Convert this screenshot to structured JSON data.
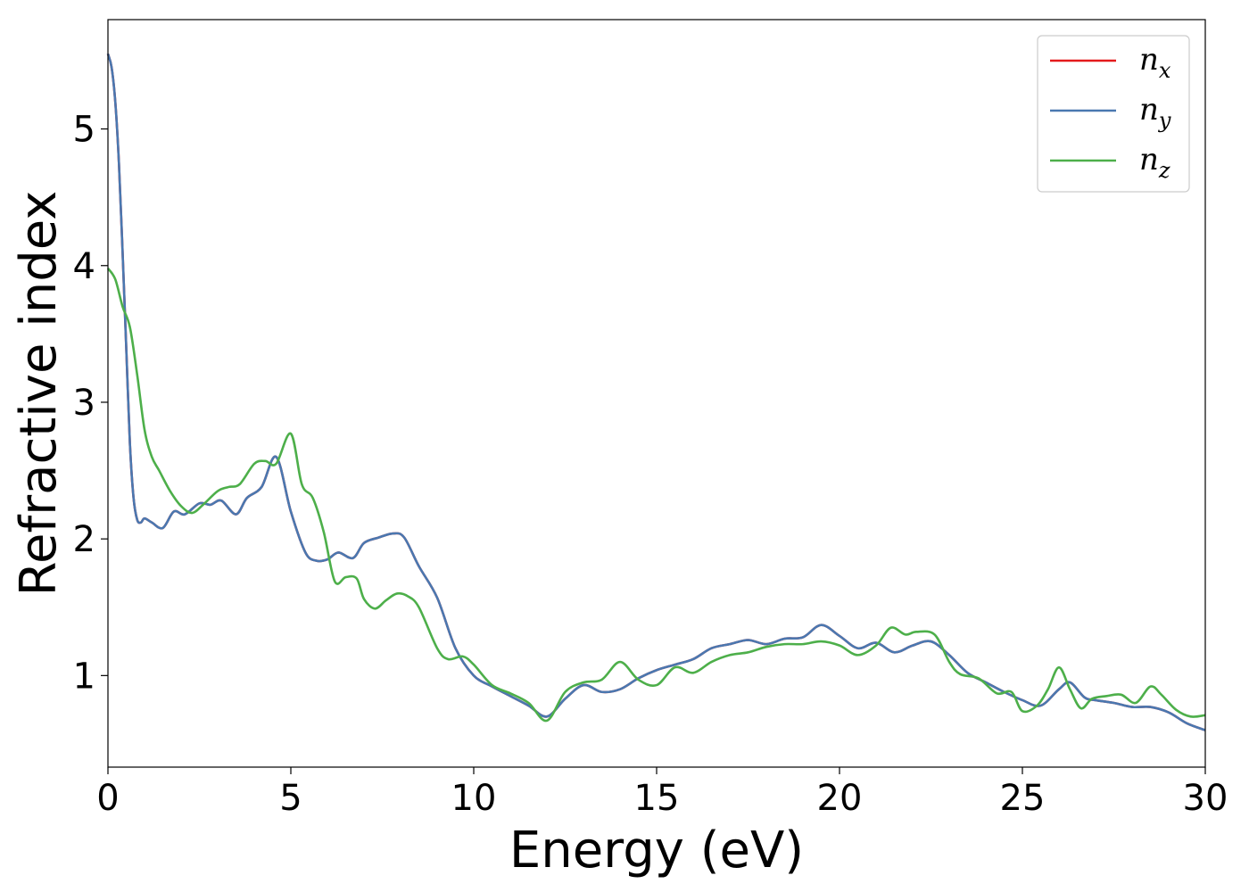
{
  "chart_data": {
    "type": "line",
    "title": "",
    "xlabel": "Energy (eV)",
    "ylabel": "Refractive index",
    "xlim": [
      0,
      30
    ],
    "ylim": [
      0.33,
      5.8
    ],
    "xticks": [
      0,
      5,
      10,
      15,
      20,
      25,
      30
    ],
    "yticks": [
      1,
      2,
      3,
      4,
      5
    ],
    "grid": false,
    "legend_position": "top-right",
    "series": [
      {
        "name": "n",
        "subscript": "x",
        "color": "#e41a1c",
        "x": [
          0,
          0.1,
          0.2,
          0.3,
          0.4,
          0.5,
          0.6,
          0.7,
          0.8,
          0.9,
          1.0,
          1.2,
          1.5,
          1.8,
          2.1,
          2.5,
          2.8,
          3.1,
          3.5,
          3.8,
          4.2,
          4.6,
          5.0,
          5.4,
          5.7,
          6.0,
          6.3,
          6.7,
          7.0,
          7.4,
          7.8,
          8.1,
          8.5,
          9.0,
          9.5,
          10.0,
          10.5,
          11.0,
          11.5,
          12.0,
          12.5,
          13.0,
          13.5,
          14.0,
          14.5,
          15.0,
          15.5,
          16.0,
          16.5,
          17.0,
          17.5,
          18.0,
          18.5,
          19.0,
          19.5,
          20.0,
          20.5,
          21.0,
          21.5,
          22.0,
          22.5,
          23.0,
          23.5,
          24.0,
          24.5,
          25.0,
          25.5,
          26.0,
          26.3,
          26.7,
          27.0,
          27.5,
          28.0,
          28.5,
          29.0,
          29.5,
          30.0
        ],
        "y": [
          5.55,
          5.45,
          5.2,
          4.75,
          4.1,
          3.4,
          2.7,
          2.3,
          2.14,
          2.12,
          2.15,
          2.12,
          2.08,
          2.2,
          2.18,
          2.26,
          2.25,
          2.28,
          2.18,
          2.3,
          2.38,
          2.6,
          2.2,
          1.9,
          1.84,
          1.85,
          1.9,
          1.86,
          1.97,
          2.01,
          2.04,
          2.01,
          1.8,
          1.57,
          1.2,
          1.0,
          0.92,
          0.85,
          0.78,
          0.7,
          0.83,
          0.93,
          0.88,
          0.9,
          0.98,
          1.04,
          1.08,
          1.12,
          1.2,
          1.23,
          1.26,
          1.23,
          1.27,
          1.28,
          1.37,
          1.29,
          1.2,
          1.24,
          1.17,
          1.22,
          1.25,
          1.15,
          1.02,
          0.95,
          0.88,
          0.82,
          0.78,
          0.9,
          0.95,
          0.84,
          0.82,
          0.8,
          0.77,
          0.77,
          0.73,
          0.65,
          0.6
        ]
      },
      {
        "name": "n",
        "subscript": "y",
        "color": "#4a78b0",
        "x": [
          0,
          0.1,
          0.2,
          0.3,
          0.4,
          0.5,
          0.6,
          0.7,
          0.8,
          0.9,
          1.0,
          1.2,
          1.5,
          1.8,
          2.1,
          2.5,
          2.8,
          3.1,
          3.5,
          3.8,
          4.2,
          4.6,
          5.0,
          5.4,
          5.7,
          6.0,
          6.3,
          6.7,
          7.0,
          7.4,
          7.8,
          8.1,
          8.5,
          9.0,
          9.5,
          10.0,
          10.5,
          11.0,
          11.5,
          12.0,
          12.5,
          13.0,
          13.5,
          14.0,
          14.5,
          15.0,
          15.5,
          16.0,
          16.5,
          17.0,
          17.5,
          18.0,
          18.5,
          19.0,
          19.5,
          20.0,
          20.5,
          21.0,
          21.5,
          22.0,
          22.5,
          23.0,
          23.5,
          24.0,
          24.5,
          25.0,
          25.5,
          26.0,
          26.3,
          26.7,
          27.0,
          27.5,
          28.0,
          28.5,
          29.0,
          29.5,
          30.0
        ],
        "y": [
          5.55,
          5.45,
          5.2,
          4.75,
          4.1,
          3.4,
          2.7,
          2.3,
          2.14,
          2.12,
          2.15,
          2.12,
          2.08,
          2.2,
          2.18,
          2.26,
          2.25,
          2.28,
          2.18,
          2.3,
          2.38,
          2.6,
          2.2,
          1.9,
          1.84,
          1.85,
          1.9,
          1.86,
          1.97,
          2.01,
          2.04,
          2.01,
          1.8,
          1.57,
          1.2,
          1.0,
          0.92,
          0.85,
          0.78,
          0.7,
          0.83,
          0.93,
          0.88,
          0.9,
          0.98,
          1.04,
          1.08,
          1.12,
          1.2,
          1.23,
          1.26,
          1.23,
          1.27,
          1.28,
          1.37,
          1.29,
          1.2,
          1.24,
          1.17,
          1.22,
          1.25,
          1.15,
          1.02,
          0.95,
          0.88,
          0.82,
          0.78,
          0.9,
          0.95,
          0.84,
          0.82,
          0.8,
          0.77,
          0.77,
          0.73,
          0.65,
          0.6
        ]
      },
      {
        "name": "n",
        "subscript": "z",
        "color": "#4daf4a",
        "x": [
          0,
          0.2,
          0.4,
          0.6,
          0.8,
          1.0,
          1.2,
          1.4,
          1.7,
          2.0,
          2.3,
          2.6,
          3.0,
          3.3,
          3.6,
          4.0,
          4.3,
          4.6,
          5.0,
          5.3,
          5.6,
          5.9,
          6.2,
          6.5,
          6.8,
          7.0,
          7.3,
          7.6,
          7.9,
          8.2,
          8.5,
          9.0,
          9.3,
          9.7,
          10.0,
          10.5,
          11.0,
          11.5,
          12.0,
          12.5,
          13.0,
          13.5,
          14.0,
          14.5,
          15.0,
          15.5,
          16.0,
          16.5,
          17.0,
          17.5,
          18.0,
          18.5,
          19.0,
          19.5,
          20.0,
          20.5,
          21.0,
          21.4,
          21.8,
          22.1,
          22.6,
          23.0,
          23.3,
          23.8,
          24.3,
          24.7,
          25.0,
          25.4,
          25.7,
          26.0,
          26.3,
          26.6,
          26.9,
          27.3,
          27.7,
          28.1,
          28.5,
          28.8,
          29.2,
          29.6,
          30.0
        ],
        "y": [
          3.98,
          3.9,
          3.7,
          3.55,
          3.2,
          2.8,
          2.6,
          2.5,
          2.35,
          2.24,
          2.19,
          2.25,
          2.35,
          2.38,
          2.4,
          2.55,
          2.57,
          2.55,
          2.77,
          2.4,
          2.3,
          2.05,
          1.69,
          1.72,
          1.71,
          1.56,
          1.49,
          1.55,
          1.6,
          1.58,
          1.5,
          1.2,
          1.12,
          1.14,
          1.08,
          0.93,
          0.87,
          0.8,
          0.67,
          0.88,
          0.95,
          0.97,
          1.1,
          0.97,
          0.93,
          1.06,
          1.02,
          1.1,
          1.15,
          1.17,
          1.21,
          1.23,
          1.23,
          1.25,
          1.22,
          1.15,
          1.22,
          1.35,
          1.3,
          1.32,
          1.3,
          1.1,
          1.01,
          0.98,
          0.87,
          0.88,
          0.74,
          0.78,
          0.9,
          1.06,
          0.9,
          0.76,
          0.83,
          0.85,
          0.86,
          0.8,
          0.92,
          0.86,
          0.75,
          0.7,
          0.71
        ]
      }
    ]
  }
}
